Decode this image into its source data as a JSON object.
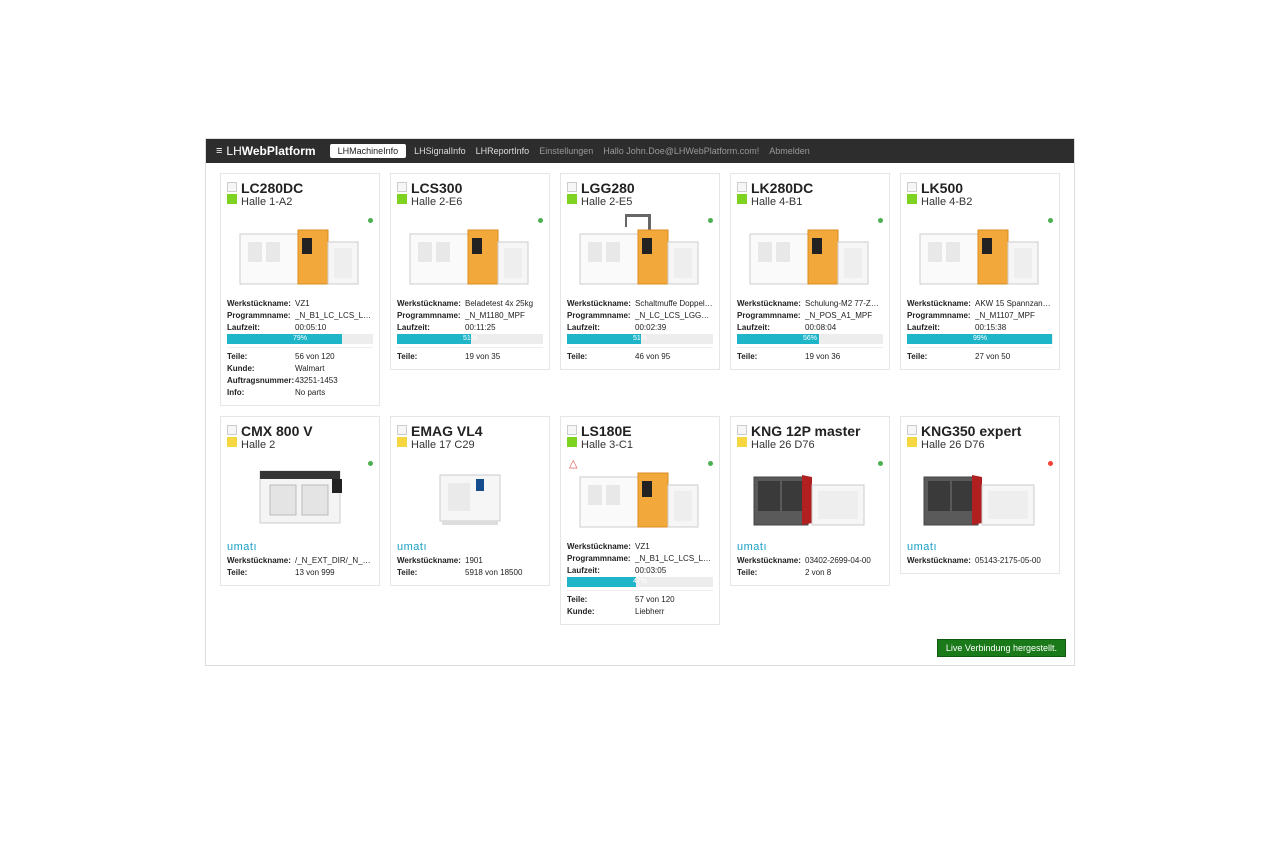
{
  "brand": {
    "prefix": "LH",
    "bold": "WebPlatform"
  },
  "nav": {
    "active": "LHMachineInfo",
    "items": [
      "LHSignalInfo",
      "LHReportInfo"
    ],
    "muted": [
      "Einstellungen",
      "Hallo John.Doe@LHWebPlatform.com!",
      "Abmelden"
    ]
  },
  "labels": {
    "werk": "Werkstückname:",
    "prog": "Programmname:",
    "lauf": "Laufzeit:",
    "teile": "Teile:",
    "kunde": "Kunde:",
    "auftrag": "Auftragsnummer:",
    "info": "Info:"
  },
  "connection": "Live Verbindung hergestellt.",
  "colors": {
    "progress_fill": "#1fb5c9",
    "progress_bg": "#ededed",
    "navbar_bg": "#2d2d2d",
    "umati": "#1aa0c7",
    "status_green": "#4caf50",
    "status_orange": "#ff9800",
    "status_red": "#f44336",
    "state_green": "#7ed321",
    "state_yellow": "#f5d742",
    "connection_bg": "#1a7a1a"
  },
  "machines": [
    {
      "name": "LC280DC",
      "loc": "Halle 1-A2",
      "state": "green",
      "dot": "green",
      "img": "liebherr-orange",
      "werk": "VZ1",
      "prog": "_N_B1_LC_LCS_LGG_...",
      "lauf": "00:05:10",
      "pct": 79,
      "pct_label": "79%",
      "teile": "56 von 120",
      "kunde": "Walmart",
      "auftrag": "43251-1453",
      "info": "No parts"
    },
    {
      "name": "LCS300",
      "loc": "Halle 2-E6",
      "state": "green",
      "dot": "green",
      "img": "liebherr-orange",
      "werk": "Beladetest 4x 25kg",
      "prog": "_N_M1180_MPF",
      "lauf": "00:11:25",
      "pct": 51,
      "pct_label": "51%",
      "teile": "19 von 35"
    },
    {
      "name": "LGG280",
      "loc": "Halle 2-E5",
      "state": "green",
      "dot": "green",
      "img": "liebherr-crane",
      "werk": "Schaltmuffe Doppelv...",
      "prog": "_N_LC_LCS_LGG_MPF",
      "lauf": "00:02:39",
      "pct": 51,
      "pct_label": "51%",
      "teile": "46 von 95"
    },
    {
      "name": "LK280DC",
      "loc": "Halle 4-B1",
      "state": "green",
      "dot": "green",
      "img": "liebherr-orange",
      "werk": "Schulung-M2 77-Z40...",
      "prog": "_N_POS_A1_MPF",
      "lauf": "00:08:04",
      "pct": 56,
      "pct_label": "56%",
      "teile": "19 von 36"
    },
    {
      "name": "LK500",
      "loc": "Halle 4-B2",
      "state": "green",
      "dot": "green",
      "img": "liebherr-orange",
      "werk": "AKW 15 Spannzange...",
      "prog": "_N_M1107_MPF",
      "lauf": "00:15:38",
      "pct": 99,
      "pct_label": "99%",
      "teile": "27 von 50"
    },
    {
      "name": "CMX 800 V",
      "loc": "Halle 2",
      "state": "yellow",
      "dot": "green",
      "img": "dmg",
      "umati": true,
      "werk": "/_N_EXT_DIR/_N_EXT...",
      "teile": "13 von 999"
    },
    {
      "name": "EMAG VL4",
      "loc": "Halle 17 C29",
      "state": "yellow",
      "dot": "none",
      "img": "emag",
      "umati": true,
      "werk": "1901",
      "teile": "5918 von 18500"
    },
    {
      "name": "LS180E",
      "loc": "Halle 3-C1",
      "state": "green",
      "dot": "green",
      "warn": true,
      "img": "liebherr-small",
      "werk": "VZ1",
      "prog": "_N_B1_LC_LCS_LGG_...",
      "lauf": "00:03:05",
      "pct": 47,
      "pct_label": "47%",
      "teile": "57 von 120",
      "kunde": "Liebherr"
    },
    {
      "name": "KNG 12P master",
      "loc": "Halle 26 D76",
      "state": "yellow",
      "dot": "green",
      "img": "kng",
      "umati": true,
      "werk": "03402-2699-04-00",
      "teile": "2 von 8"
    },
    {
      "name": "KNG350 expert",
      "loc": "Halle 26 D76",
      "state": "yellow",
      "dot": "red",
      "img": "kng",
      "umati": true,
      "werk": "05143-2175-05-00"
    }
  ]
}
